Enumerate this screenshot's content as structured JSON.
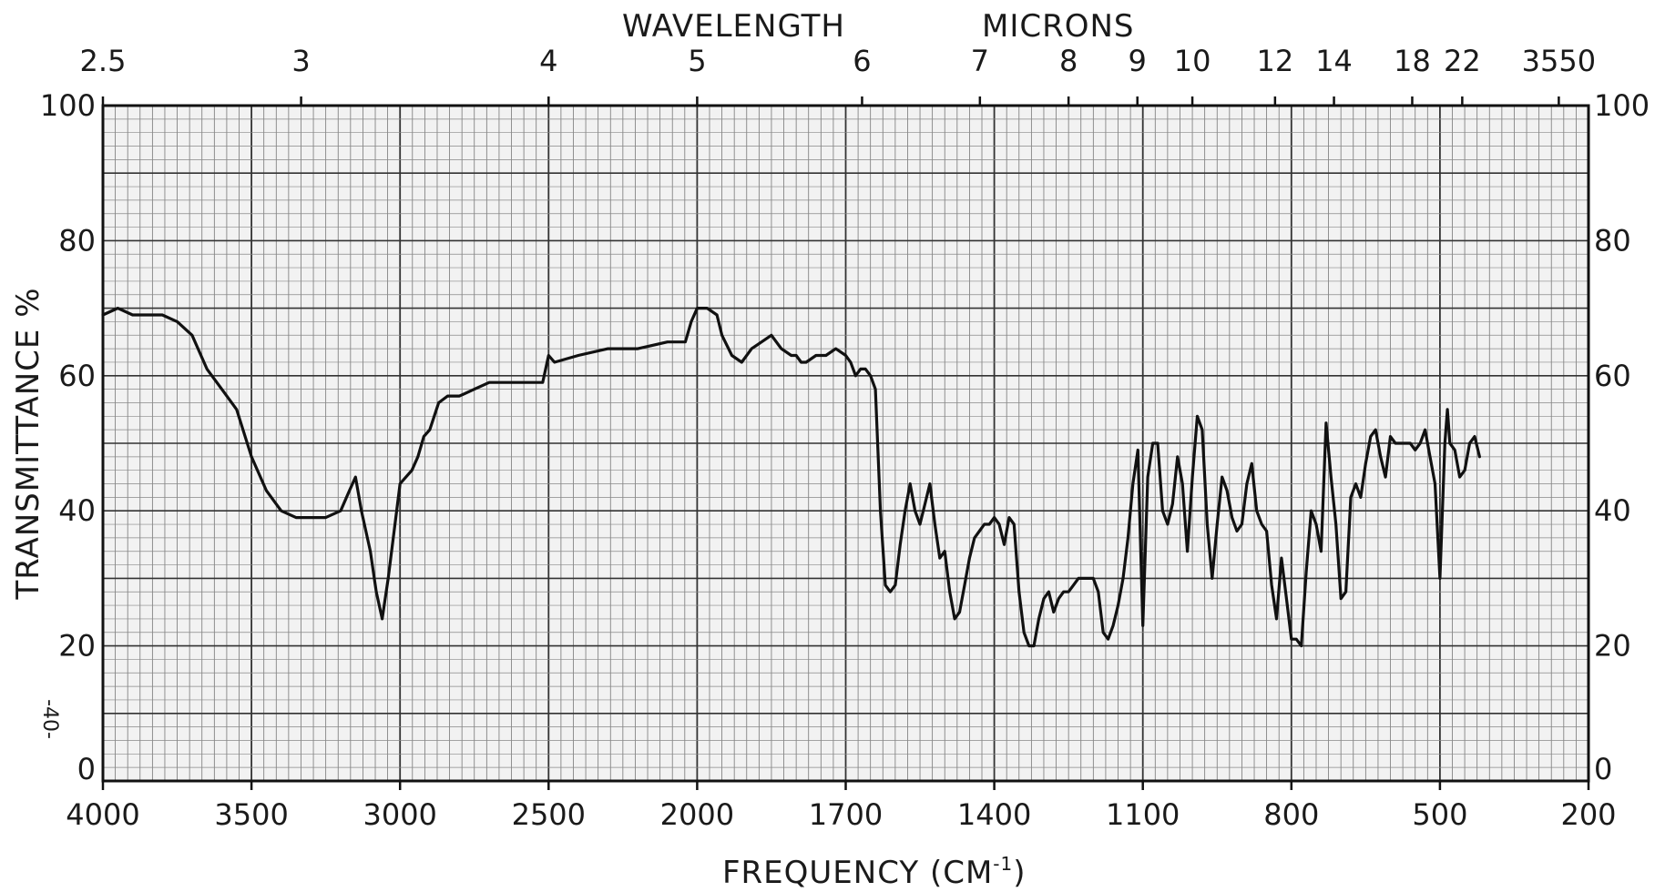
{
  "chart_data": {
    "type": "line",
    "top_axis_title_left": "WAVELENGTH",
    "top_axis_title_right": "MICRONS",
    "xlabel": "FREQUENCY (CM",
    "xlabel_sup": "-1",
    "xlabel_close": ")",
    "ylabel": "TRANSMITTANCE %",
    "side_note": "-40-",
    "bottom_ticks": [
      {
        "label": "4000",
        "pos": 0
      },
      {
        "label": "3500",
        "pos": 1
      },
      {
        "label": "3000",
        "pos": 2
      },
      {
        "label": "2500",
        "pos": 3
      },
      {
        "label": "2000",
        "pos": 4
      },
      {
        "label": "1700",
        "pos": 5
      },
      {
        "label": "1400",
        "pos": 6
      },
      {
        "label": "1100",
        "pos": 7
      },
      {
        "label": "800",
        "pos": 8
      },
      {
        "label": "500",
        "pos": 9
      },
      {
        "label": "200",
        "pos": 10
      }
    ],
    "top_ticks": [
      {
        "label": "2.5",
        "cm": 4000
      },
      {
        "label": "3",
        "cm": 3333
      },
      {
        "label": "4",
        "cm": 2500
      },
      {
        "label": "5",
        "cm": 2000
      },
      {
        "label": "6",
        "cm": 1667
      },
      {
        "label": "7",
        "cm": 1429
      },
      {
        "label": "8",
        "cm": 1250
      },
      {
        "label": "9",
        "cm": 1111
      },
      {
        "label": "10",
        "cm": 1000
      },
      {
        "label": "12",
        "cm": 833
      },
      {
        "label": "14",
        "cm": 714
      },
      {
        "label": "18",
        "cm": 556
      },
      {
        "label": "22",
        "cm": 455
      },
      {
        "label": "3550",
        "cm": 260
      }
    ],
    "y_ticks": [
      "0",
      "20",
      "40",
      "60",
      "80",
      "100"
    ],
    "ylim": [
      0,
      100
    ],
    "grid": true,
    "series": [
      {
        "points": [
          [
            4000,
            69
          ],
          [
            3950,
            70
          ],
          [
            3900,
            69
          ],
          [
            3850,
            69
          ],
          [
            3800,
            69
          ],
          [
            3750,
            68
          ],
          [
            3700,
            66
          ],
          [
            3650,
            61
          ],
          [
            3600,
            58
          ],
          [
            3550,
            55
          ],
          [
            3500,
            48
          ],
          [
            3450,
            43
          ],
          [
            3400,
            40
          ],
          [
            3350,
            39
          ],
          [
            3300,
            39
          ],
          [
            3250,
            39
          ],
          [
            3200,
            40
          ],
          [
            3170,
            43
          ],
          [
            3150,
            45
          ],
          [
            3130,
            40
          ],
          [
            3100,
            34
          ],
          [
            3080,
            28
          ],
          [
            3060,
            24
          ],
          [
            3040,
            30
          ],
          [
            3020,
            37
          ],
          [
            3000,
            44
          ],
          [
            2980,
            45
          ],
          [
            2960,
            46
          ],
          [
            2940,
            48
          ],
          [
            2920,
            51
          ],
          [
            2900,
            52
          ],
          [
            2870,
            56
          ],
          [
            2840,
            57
          ],
          [
            2800,
            57
          ],
          [
            2750,
            58
          ],
          [
            2700,
            59
          ],
          [
            2600,
            59
          ],
          [
            2520,
            59
          ],
          [
            2500,
            63
          ],
          [
            2480,
            62
          ],
          [
            2400,
            63
          ],
          [
            2300,
            64
          ],
          [
            2200,
            64
          ],
          [
            2100,
            65
          ],
          [
            2040,
            65
          ],
          [
            2020,
            68
          ],
          [
            2000,
            70
          ],
          [
            1980,
            70
          ],
          [
            1960,
            69
          ],
          [
            1950,
            66
          ],
          [
            1930,
            63
          ],
          [
            1910,
            62
          ],
          [
            1890,
            64
          ],
          [
            1870,
            65
          ],
          [
            1850,
            66
          ],
          [
            1830,
            64
          ],
          [
            1810,
            63
          ],
          [
            1800,
            63
          ],
          [
            1790,
            62
          ],
          [
            1780,
            62
          ],
          [
            1760,
            63
          ],
          [
            1740,
            63
          ],
          [
            1720,
            64
          ],
          [
            1700,
            63
          ],
          [
            1690,
            62
          ],
          [
            1680,
            60
          ],
          [
            1670,
            61
          ],
          [
            1660,
            61
          ],
          [
            1650,
            60
          ],
          [
            1640,
            58
          ],
          [
            1630,
            40
          ],
          [
            1620,
            29
          ],
          [
            1610,
            28
          ],
          [
            1600,
            29
          ],
          [
            1590,
            35
          ],
          [
            1580,
            40
          ],
          [
            1570,
            44
          ],
          [
            1560,
            40
          ],
          [
            1550,
            38
          ],
          [
            1540,
            41
          ],
          [
            1530,
            44
          ],
          [
            1520,
            38
          ],
          [
            1510,
            33
          ],
          [
            1500,
            34
          ],
          [
            1490,
            28
          ],
          [
            1480,
            24
          ],
          [
            1470,
            25
          ],
          [
            1460,
            29
          ],
          [
            1450,
            33
          ],
          [
            1440,
            36
          ],
          [
            1430,
            37
          ],
          [
            1420,
            38
          ],
          [
            1410,
            38
          ],
          [
            1400,
            39
          ],
          [
            1390,
            38
          ],
          [
            1380,
            35
          ],
          [
            1370,
            39
          ],
          [
            1360,
            38
          ],
          [
            1350,
            28
          ],
          [
            1340,
            22
          ],
          [
            1330,
            20
          ],
          [
            1320,
            20
          ],
          [
            1310,
            24
          ],
          [
            1300,
            27
          ],
          [
            1290,
            28
          ],
          [
            1280,
            25
          ],
          [
            1270,
            27
          ],
          [
            1260,
            28
          ],
          [
            1250,
            28
          ],
          [
            1240,
            29
          ],
          [
            1230,
            30
          ],
          [
            1220,
            30
          ],
          [
            1210,
            30
          ],
          [
            1200,
            30
          ],
          [
            1190,
            28
          ],
          [
            1180,
            22
          ],
          [
            1170,
            21
          ],
          [
            1160,
            23
          ],
          [
            1150,
            26
          ],
          [
            1140,
            30
          ],
          [
            1130,
            36
          ],
          [
            1120,
            44
          ],
          [
            1110,
            49
          ],
          [
            1100,
            23
          ],
          [
            1090,
            45
          ],
          [
            1080,
            50
          ],
          [
            1070,
            50
          ],
          [
            1060,
            40
          ],
          [
            1050,
            38
          ],
          [
            1040,
            41
          ],
          [
            1030,
            48
          ],
          [
            1020,
            44
          ],
          [
            1010,
            34
          ],
          [
            1000,
            45
          ],
          [
            990,
            54
          ],
          [
            980,
            52
          ],
          [
            970,
            38
          ],
          [
            960,
            30
          ],
          [
            950,
            38
          ],
          [
            940,
            45
          ],
          [
            930,
            43
          ],
          [
            920,
            39
          ],
          [
            910,
            37
          ],
          [
            900,
            38
          ],
          [
            890,
            44
          ],
          [
            880,
            47
          ],
          [
            870,
            40
          ],
          [
            860,
            38
          ],
          [
            850,
            37
          ],
          [
            840,
            29
          ],
          [
            830,
            24
          ],
          [
            820,
            33
          ],
          [
            810,
            27
          ],
          [
            800,
            21
          ],
          [
            790,
            21
          ],
          [
            780,
            20
          ],
          [
            770,
            31
          ],
          [
            760,
            40
          ],
          [
            750,
            38
          ],
          [
            740,
            34
          ],
          [
            730,
            53
          ],
          [
            720,
            45
          ],
          [
            710,
            38
          ],
          [
            700,
            27
          ],
          [
            690,
            28
          ],
          [
            680,
            42
          ],
          [
            670,
            44
          ],
          [
            660,
            42
          ],
          [
            650,
            47
          ],
          [
            640,
            51
          ],
          [
            630,
            52
          ],
          [
            620,
            48
          ],
          [
            610,
            45
          ],
          [
            600,
            51
          ],
          [
            590,
            50
          ],
          [
            580,
            50
          ],
          [
            570,
            50
          ],
          [
            560,
            50
          ],
          [
            550,
            49
          ],
          [
            540,
            50
          ],
          [
            530,
            52
          ],
          [
            520,
            48
          ],
          [
            510,
            44
          ],
          [
            500,
            30
          ],
          [
            495,
            40
          ],
          [
            490,
            50
          ],
          [
            485,
            55
          ],
          [
            480,
            50
          ],
          [
            470,
            49
          ],
          [
            460,
            45
          ],
          [
            450,
            46
          ],
          [
            440,
            50
          ],
          [
            430,
            51
          ],
          [
            420,
            48
          ]
        ]
      }
    ]
  }
}
